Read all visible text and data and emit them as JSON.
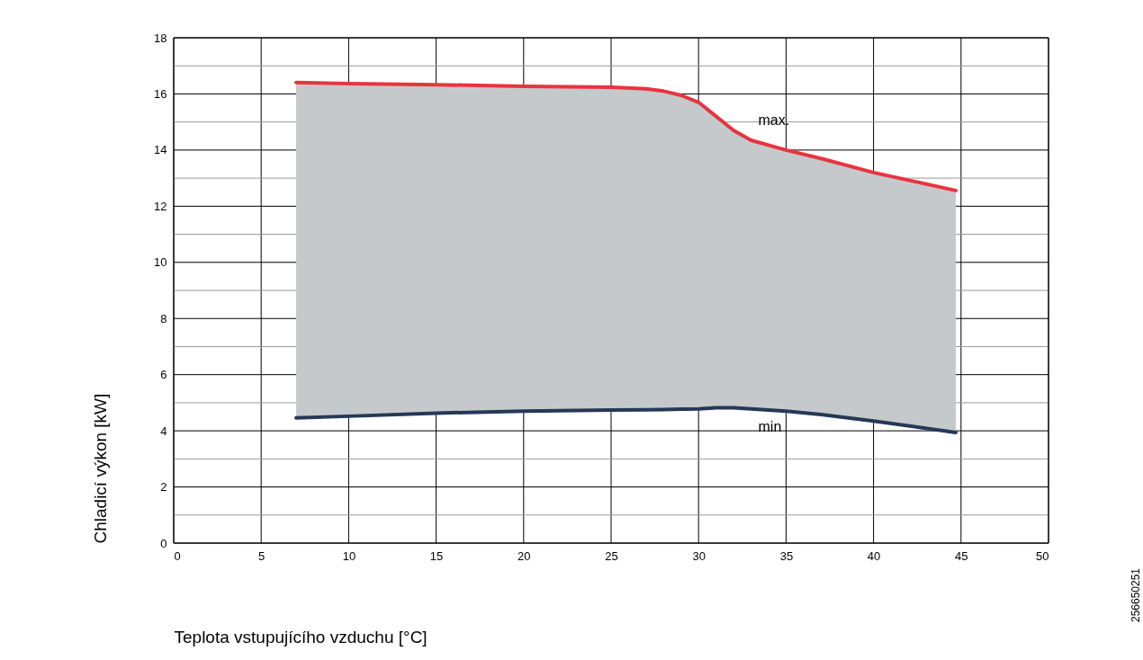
{
  "chart_data": {
    "type": "line",
    "xlabel": "Teplota vstupujícího vzduchu [°C]",
    "ylabel": "Chladicí výkon [kW]",
    "x": [
      7,
      10,
      15,
      20,
      25,
      27,
      28,
      29,
      30,
      31,
      32,
      33,
      35,
      37,
      40,
      44.7
    ],
    "series": [
      {
        "name": "max.",
        "color": "#e8343f",
        "values": [
          16.41,
          16.37,
          16.33,
          16.27,
          16.24,
          16.18,
          16.1,
          15.95,
          15.7,
          15.2,
          14.7,
          14.35,
          14.0,
          13.7,
          13.2,
          12.56
        ],
        "lower": [
          4.46,
          4.52,
          4.63,
          4.7,
          4.74,
          4.75,
          4.76,
          4.77,
          4.78,
          4.82,
          4.82,
          4.78,
          4.7,
          4.58,
          4.35,
          3.94
        ],
        "upper": [
          16.41,
          16.37,
          16.33,
          16.27,
          16.24,
          16.18,
          16.1,
          15.95,
          15.7,
          15.2,
          14.7,
          14.35,
          14.0,
          13.7,
          13.2,
          12.56
        ]
      },
      {
        "name": "min",
        "color": "#253858",
        "values": [
          4.46,
          4.52,
          4.63,
          4.7,
          4.74,
          4.75,
          4.76,
          4.77,
          4.78,
          4.82,
          4.82,
          4.78,
          4.7,
          4.58,
          4.35,
          3.94
        ]
      }
    ],
    "xlim": [
      0,
      50
    ],
    "xticks": [
      0,
      5,
      10,
      15,
      20,
      25,
      30,
      35,
      40,
      45,
      50
    ],
    "ylim": [
      0,
      18
    ],
    "yticks": [
      0,
      {
        "value": 1,
        "label": null
      },
      2,
      {
        "value": 3,
        "label": null
      },
      4,
      {
        "value": 5,
        "label": null
      },
      6,
      {
        "value": 7,
        "label": null
      },
      8,
      {
        "value": 9,
        "label": null
      },
      10,
      {
        "value": 11,
        "label": null
      },
      12,
      {
        "value": 13,
        "label": null
      },
      14,
      {
        "value": 15,
        "label": null
      },
      16,
      {
        "value": 17,
        "label": null
      },
      18
    ],
    "grid": true,
    "marker": "none",
    "line_style": "solid",
    "annotations": [
      "256650251"
    ]
  }
}
